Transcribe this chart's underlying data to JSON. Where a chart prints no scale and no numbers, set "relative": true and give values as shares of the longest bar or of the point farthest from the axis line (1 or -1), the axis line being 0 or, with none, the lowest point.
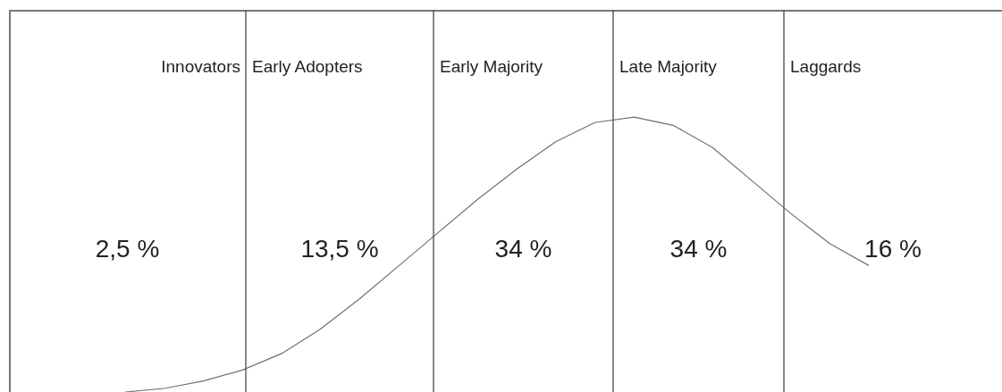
{
  "chart_data": {
    "type": "line",
    "relative": true,
    "tick_labels": false,
    "marker": "none",
    "line_style": "solid",
    "categories": [
      null,
      null,
      null,
      null,
      null,
      null,
      null,
      null,
      null,
      null,
      null,
      null,
      null,
      null,
      null,
      null,
      null,
      null,
      null,
      null
    ],
    "series": [
      {
        "color": "#707070",
        "values": [
          0,
          0.013,
          0.04,
          0.08,
          0.14,
          0.23,
          0.34,
          0.46,
          0.58,
          0.7,
          0.81,
          0.91,
          0.98,
          1,
          0.97,
          0.89,
          0.77,
          0.65,
          0.54,
          0.46
        ]
      }
    ],
    "annotations": [
      "Innovators",
      "Early Adopters",
      "Early Majority",
      "Late Majority",
      "Laggards",
      "2,5 %",
      "13,5 %",
      "34 %",
      "34 %",
      "16 %"
    ]
  }
}
